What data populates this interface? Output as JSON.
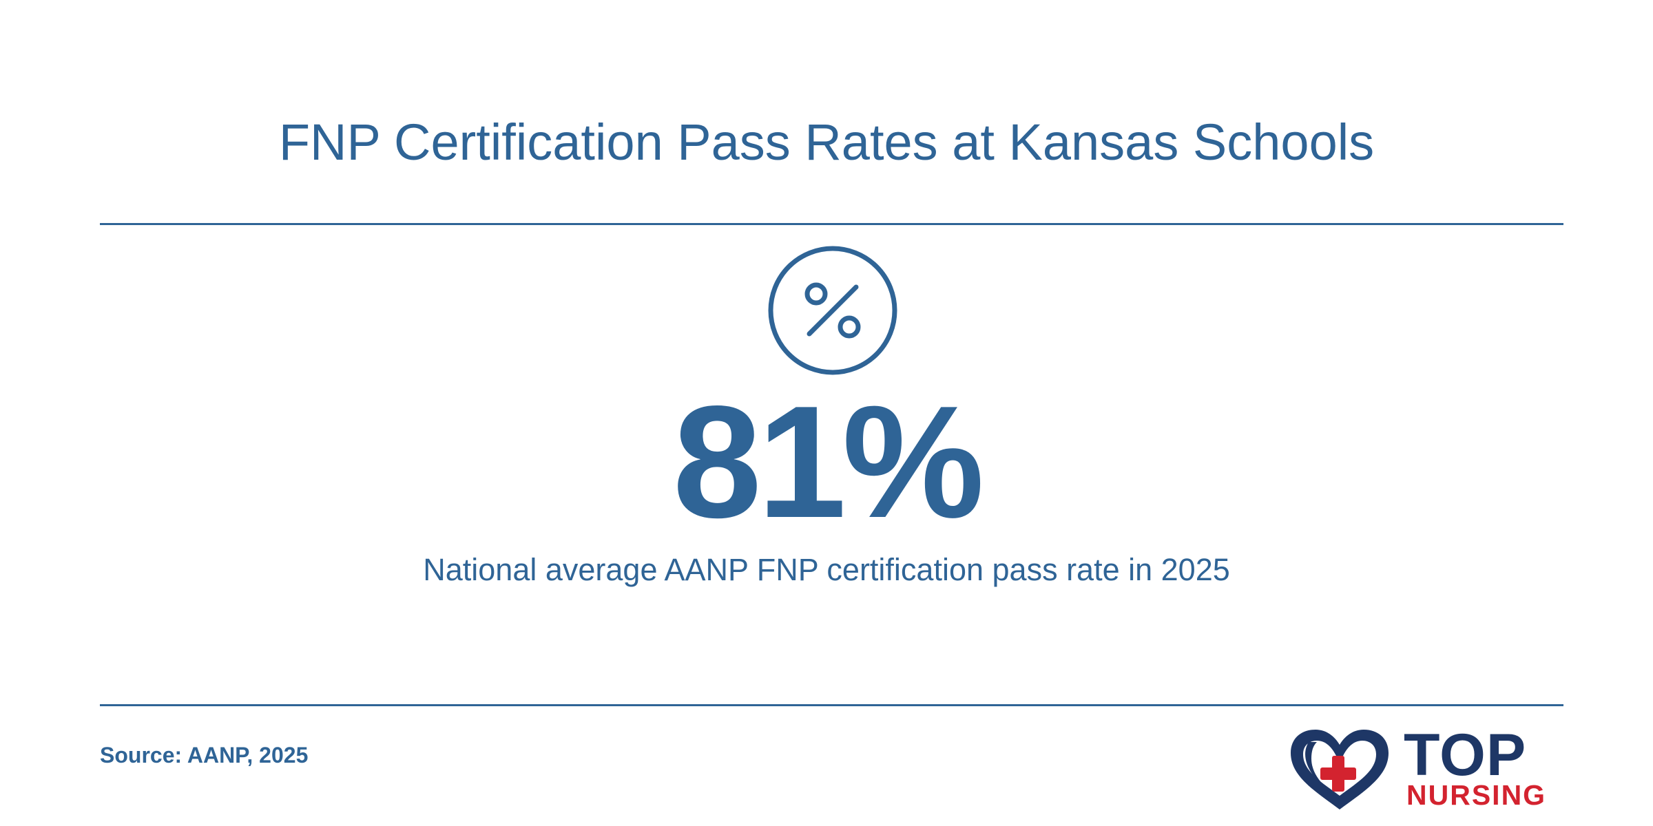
{
  "header": {
    "title": "FNP Certification Pass Rates at Kansas Schools"
  },
  "stat": {
    "icon": "percent-circle-icon",
    "value": "81%",
    "caption": "National average AANP FNP certification pass rate in 2025"
  },
  "footer": {
    "source": "Source: AANP, 2025",
    "logo": {
      "icon": "heart-cross-icon",
      "word_top": "TOP",
      "word_bottom": "NURSING"
    }
  },
  "colors": {
    "primary": "#2f6496",
    "logo_navy": "#1e3766",
    "logo_red": "#d3232f",
    "background": "#ffffff"
  }
}
